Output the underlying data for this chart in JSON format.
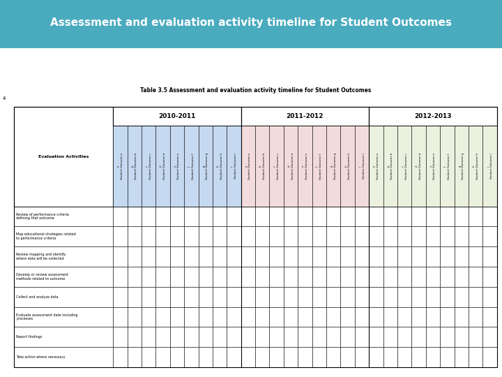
{
  "title_banner": "Assessment and evaluation activity timeline for Student Outcomes",
  "title_banner_bg": "#4AABBF",
  "title_banner_text_color": "#FFFFFF",
  "table_title": "Table 3.5 Assessment and evaluation activity timeline for Student Outcomes",
  "year_groups": [
    "2010-2011",
    "2011-2012",
    "2012-2013"
  ],
  "col_letters": [
    "a",
    "b",
    "c",
    "d",
    "e",
    "f",
    "g",
    "h",
    "i"
  ],
  "col_colors_2010": "#C5D9F1",
  "col_colors_2011": "#F2DCDB",
  "col_colors_2012": "#EBF1DE",
  "row_activities": [
    "Review of performance criteria\ndefining that outcome",
    "Map educational strategies related\nto performance criteria",
    "Review mapping and identify\nwhere data will be collected",
    "Develop or review assessment\nmethods related to outcome",
    "Collect and analyze data",
    "Evaluate assessment date including\nprocesses",
    "Report findings",
    "Take action where necessary"
  ],
  "eval_activities_label": "Evaluation Activities",
  "background_color": "#FFFFFF",
  "page_bg": "#E8E8E8"
}
